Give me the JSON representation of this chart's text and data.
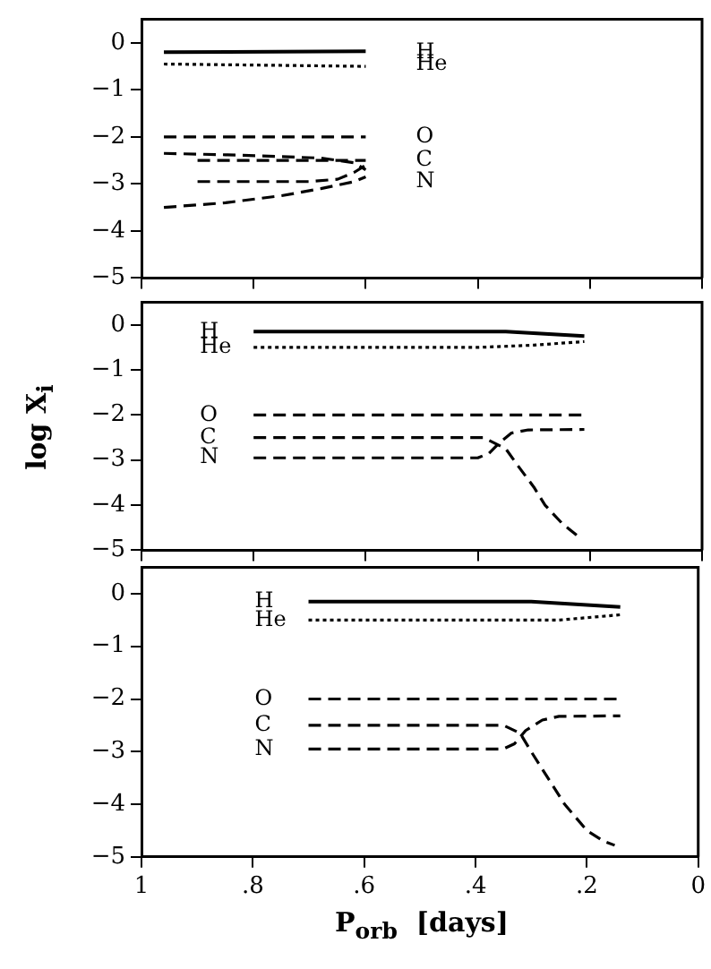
{
  "chart_data": [
    {
      "type": "line",
      "xlim": [
        1,
        0
      ],
      "xticks": [
        {
          "value": 1,
          "label": null
        },
        {
          "value": 0.8,
          "label": null
        },
        {
          "value": 0.6,
          "label": null
        },
        {
          "value": 0.4,
          "label": null
        },
        {
          "value": 0.2,
          "label": null
        },
        {
          "value": 0,
          "label": null
        }
      ],
      "ylim": [
        -5,
        0.5
      ],
      "yticks": [
        -5,
        -4,
        -3,
        -2,
        -1,
        0
      ],
      "tick_labels": "y",
      "grid": false,
      "legend": false,
      "marker": "none",
      "series": [
        {
          "name": "H",
          "color": "#000000",
          "line_style": "solid",
          "x": [
            0.96,
            0.6
          ],
          "values": [
            -0.2,
            -0.18
          ]
        },
        {
          "name": "He",
          "color": "#000000",
          "line_style": "dotted",
          "x": [
            0.96,
            0.6
          ],
          "values": [
            -0.45,
            -0.5
          ]
        },
        {
          "name": "O",
          "color": "#000000",
          "line_style": "dashed",
          "x": [
            0.96,
            0.6
          ],
          "values": [
            -2.0,
            -2.0
          ]
        },
        {
          "color": "#000000",
          "line_style": "dashed",
          "x": [
            0.96,
            0.85,
            0.75,
            0.68,
            0.62,
            0.6
          ],
          "values": [
            -2.35,
            -2.38,
            -2.42,
            -2.45,
            -2.55,
            -2.7
          ]
        },
        {
          "name": "C",
          "color": "#000000",
          "line_style": "dashed",
          "x": [
            0.9,
            0.6
          ],
          "values": [
            -2.5,
            -2.5
          ]
        },
        {
          "name": "N",
          "color": "#000000",
          "line_style": "dashed",
          "x": [
            0.9,
            0.7,
            0.65,
            0.62,
            0.6
          ],
          "values": [
            -2.95,
            -2.95,
            -2.9,
            -2.75,
            -2.6
          ]
        },
        {
          "color": "#000000",
          "line_style": "dashed",
          "x": [
            0.96,
            0.85,
            0.75,
            0.68,
            0.62,
            0.6
          ],
          "values": [
            -3.5,
            -3.4,
            -3.25,
            -3.1,
            -2.95,
            -2.85
          ]
        }
      ]
    },
    {
      "type": "line",
      "ylabel": "log X$_{i}$",
      "xlim": [
        1,
        0
      ],
      "xticks": [
        {
          "value": 1,
          "label": null
        },
        {
          "value": 0.8,
          "label": null
        },
        {
          "value": 0.6,
          "label": null
        },
        {
          "value": 0.4,
          "label": null
        },
        {
          "value": 0.2,
          "label": null
        },
        {
          "value": 0,
          "label": null
        }
      ],
      "ylim": [
        -5,
        0.5
      ],
      "yticks": [
        -5,
        -4,
        -3,
        -2,
        -1,
        0
      ],
      "tick_labels": "y",
      "grid": false,
      "legend": false,
      "marker": "none",
      "series": [
        {
          "name": "H",
          "color": "#000000",
          "line_style": "solid",
          "x": [
            0.8,
            0.35,
            0.21
          ],
          "values": [
            -0.15,
            -0.15,
            -0.25
          ]
        },
        {
          "name": "He",
          "color": "#000000",
          "line_style": "dotted",
          "x": [
            0.8,
            0.4,
            0.3,
            0.21
          ],
          "values": [
            -0.5,
            -0.5,
            -0.45,
            -0.37
          ]
        },
        {
          "name": "O",
          "color": "#000000",
          "line_style": "dashed",
          "x": [
            0.8,
            0.21
          ],
          "values": [
            -2.0,
            -2.0
          ]
        },
        {
          "name": "C",
          "color": "#000000",
          "line_style": "dashed",
          "x": [
            0.8,
            0.39,
            0.35,
            0.33,
            0.3,
            0.28,
            0.25,
            0.22
          ],
          "values": [
            -2.5,
            -2.5,
            -2.75,
            -3.1,
            -3.6,
            -4.0,
            -4.4,
            -4.7
          ]
        },
        {
          "name": "N",
          "color": "#000000",
          "line_style": "dashed",
          "x": [
            0.8,
            0.4,
            0.38,
            0.36,
            0.34,
            0.31,
            0.21
          ],
          "values": [
            -2.95,
            -2.95,
            -2.85,
            -2.6,
            -2.4,
            -2.33,
            -2.32
          ]
        }
      ]
    },
    {
      "type": "line",
      "xlabel": "P$_{orb}$  [days]",
      "xlim": [
        1,
        0
      ],
      "xticks": [
        {
          "value": 1,
          "label": "1"
        },
        {
          "value": 0.8,
          "label": ".8"
        },
        {
          "value": 0.6,
          "label": ".6"
        },
        {
          "value": 0.4,
          "label": ".4"
        },
        {
          "value": 0.2,
          "label": ".2"
        },
        {
          "value": 0,
          "label": "0"
        }
      ],
      "ylim": [
        -5,
        0.5
      ],
      "yticks": [
        -5,
        -4,
        -3,
        -2,
        -1,
        0
      ],
      "grid": false,
      "legend": false,
      "marker": "none",
      "series": [
        {
          "name": "H",
          "color": "#000000",
          "line_style": "solid",
          "x": [
            0.7,
            0.3,
            0.14
          ],
          "values": [
            -0.15,
            -0.15,
            -0.25
          ]
        },
        {
          "name": "He",
          "color": "#000000",
          "line_style": "dotted",
          "x": [
            0.7,
            0.25,
            0.14
          ],
          "values": [
            -0.5,
            -0.5,
            -0.4
          ]
        },
        {
          "name": "O",
          "color": "#000000",
          "line_style": "dashed",
          "x": [
            0.7,
            0.14
          ],
          "values": [
            -2.0,
            -2.0
          ]
        },
        {
          "name": "C",
          "color": "#000000",
          "line_style": "dashed",
          "x": [
            0.7,
            0.35,
            0.32,
            0.3,
            0.27,
            0.24,
            0.2,
            0.17,
            0.15
          ],
          "values": [
            -2.5,
            -2.5,
            -2.65,
            -3.0,
            -3.5,
            -4.0,
            -4.5,
            -4.7,
            -4.78
          ]
        },
        {
          "name": "N",
          "color": "#000000",
          "line_style": "dashed",
          "x": [
            0.7,
            0.35,
            0.33,
            0.31,
            0.28,
            0.25,
            0.14
          ],
          "values": [
            -2.95,
            -2.95,
            -2.85,
            -2.6,
            -2.4,
            -2.33,
            -2.32
          ]
        }
      ]
    }
  ]
}
